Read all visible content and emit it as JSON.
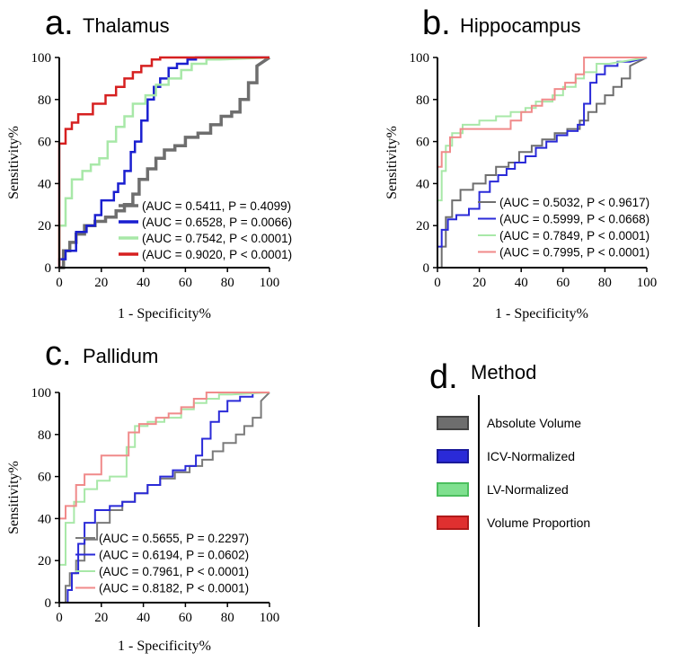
{
  "chart_data": [
    {
      "type": "line",
      "letter": "a.",
      "title": "Thalamus",
      "xlabel": "1 - Specificity%",
      "ylabel": "Sensitivity%",
      "xlim": [
        0,
        100
      ],
      "ylim": [
        0,
        100
      ],
      "xticks": [
        "0",
        "20",
        "40",
        "60",
        "80",
        "100"
      ],
      "yticks": [
        "0",
        "20",
        "40",
        "60",
        "80",
        "100"
      ],
      "series": [
        {
          "name": "Absolute Volume",
          "color": "#6e6e6e",
          "legend": "(AUC = 0.5411, P = 0.4099)",
          "x": [
            0,
            2,
            2,
            5,
            5,
            8,
            8,
            12,
            12,
            17,
            17,
            22,
            22,
            27,
            27,
            31,
            31,
            35,
            35,
            38,
            38,
            42,
            42,
            46,
            46,
            50,
            50,
            55,
            55,
            60,
            60,
            66,
            66,
            72,
            72,
            77,
            77,
            82,
            82,
            86,
            86,
            90,
            90,
            94,
            94,
            100
          ],
          "y": [
            0,
            0,
            8,
            8,
            12,
            12,
            16,
            16,
            20,
            20,
            22,
            22,
            24,
            24,
            27,
            27,
            30,
            30,
            35,
            35,
            42,
            42,
            47,
            47,
            52,
            52,
            56,
            56,
            58,
            58,
            62,
            62,
            64,
            64,
            68,
            68,
            72,
            72,
            74,
            74,
            80,
            80,
            88,
            88,
            96,
            100
          ]
        },
        {
          "name": "ICV-Normalized",
          "color": "#1a1fd0",
          "legend": "(AUC = 0.6528, P = 0.0066)",
          "x": [
            0,
            0,
            3,
            3,
            8,
            8,
            13,
            13,
            17,
            17,
            20,
            20,
            26,
            26,
            28,
            28,
            31,
            31,
            34,
            34,
            36,
            36,
            39,
            39,
            42,
            42,
            45,
            45,
            48,
            48,
            52,
            52,
            56,
            56,
            61,
            61,
            65,
            65,
            70,
            70,
            76,
            100
          ],
          "y": [
            0,
            4,
            4,
            8,
            8,
            17,
            17,
            20,
            20,
            25,
            25,
            32,
            32,
            36,
            36,
            40,
            40,
            46,
            46,
            55,
            55,
            60,
            60,
            70,
            70,
            80,
            80,
            86,
            86,
            90,
            90,
            95,
            95,
            97,
            97,
            99,
            99,
            100,
            100,
            100,
            100,
            100
          ]
        },
        {
          "name": "LV-Normalized",
          "color": "#a8e8a8",
          "legend": "(AUC = 0.7542, P < 0.0001)",
          "x": [
            0,
            0,
            3,
            3,
            6,
            6,
            11,
            11,
            15,
            15,
            19,
            19,
            23,
            23,
            27,
            27,
            31,
            31,
            35,
            35,
            41,
            41,
            46,
            46,
            52,
            52,
            58,
            58,
            63,
            63,
            70,
            70,
            76,
            100
          ],
          "y": [
            0,
            20,
            20,
            33,
            33,
            42,
            42,
            46,
            46,
            49,
            49,
            52,
            52,
            60,
            60,
            67,
            67,
            72,
            72,
            78,
            78,
            82,
            82,
            87,
            87,
            90,
            90,
            94,
            94,
            97,
            97,
            99,
            99,
            100
          ]
        },
        {
          "name": "Volume Proportion",
          "color": "#d62020",
          "lightcolor": "#f08a8a",
          "legend": "(AUC = 0.9020, P < 0.0001)",
          "x": [
            0,
            0,
            3,
            3,
            6,
            6,
            9,
            9,
            16,
            16,
            22,
            22,
            27,
            27,
            31,
            31,
            35,
            35,
            39,
            39,
            44,
            44,
            48,
            48,
            100
          ],
          "y": [
            0,
            59,
            59,
            66,
            66,
            69,
            69,
            73,
            73,
            78,
            78,
            82,
            82,
            86,
            86,
            90,
            90,
            93,
            93,
            96,
            96,
            99,
            99,
            100,
            100
          ]
        }
      ]
    },
    {
      "type": "line",
      "letter": "b.",
      "title": "Hippocampus",
      "xlabel": "1 - Specificity%",
      "ylabel": "Sensitivity%",
      "xlim": [
        0,
        100
      ],
      "ylim": [
        0,
        100
      ],
      "xticks": [
        "0",
        "20",
        "40",
        "60",
        "80",
        "100"
      ],
      "yticks": [
        "0",
        "20",
        "40",
        "60",
        "80",
        "100"
      ],
      "series": [
        {
          "name": "Absolute Volume",
          "color": "#6e6e6e",
          "legend": "(AUC = 0.5032, P < 0.9617)",
          "x": [
            0,
            2,
            2,
            4,
            4,
            7,
            7,
            11,
            11,
            17,
            17,
            23,
            23,
            28,
            28,
            34,
            34,
            39,
            39,
            45,
            45,
            50,
            50,
            56,
            56,
            62,
            62,
            68,
            68,
            72,
            72,
            76,
            76,
            80,
            80,
            84,
            84,
            88,
            88,
            92,
            92,
            100
          ],
          "y": [
            0,
            0,
            10,
            10,
            24,
            24,
            32,
            32,
            37,
            37,
            40,
            40,
            44,
            44,
            48,
            48,
            50,
            50,
            55,
            55,
            58,
            58,
            61,
            61,
            64,
            64,
            66,
            66,
            70,
            70,
            74,
            74,
            78,
            78,
            82,
            82,
            86,
            86,
            90,
            90,
            96,
            100
          ]
        },
        {
          "name": "ICV-Normalized",
          "color": "#2a2ad8",
          "legend": "(AUC = 0.5999, P < 0.0668)",
          "x": [
            0,
            0,
            2,
            2,
            5,
            5,
            9,
            9,
            15,
            15,
            20,
            20,
            25,
            25,
            29,
            29,
            33,
            33,
            37,
            37,
            42,
            42,
            47,
            47,
            52,
            52,
            57,
            57,
            62,
            62,
            67,
            67,
            70,
            70,
            73,
            73,
            76,
            76,
            80,
            80,
            86,
            86,
            92,
            100
          ],
          "y": [
            0,
            10,
            10,
            18,
            18,
            23,
            23,
            25,
            25,
            28,
            28,
            36,
            36,
            41,
            41,
            44,
            44,
            47,
            47,
            50,
            50,
            53,
            53,
            57,
            57,
            60,
            60,
            63,
            63,
            65,
            65,
            68,
            68,
            78,
            78,
            88,
            88,
            92,
            92,
            96,
            96,
            98,
            98,
            100
          ]
        },
        {
          "name": "LV-Normalized",
          "color": "#a8e8a8",
          "legend": "(AUC = 0.7849, P < 0.0001)",
          "x": [
            0,
            0,
            2,
            2,
            4,
            4,
            7,
            7,
            12,
            12,
            20,
            20,
            28,
            28,
            35,
            35,
            42,
            42,
            47,
            47,
            55,
            55,
            60,
            60,
            66,
            66,
            70,
            70,
            76,
            76,
            82,
            100
          ],
          "y": [
            0,
            32,
            32,
            46,
            46,
            58,
            58,
            64,
            64,
            68,
            68,
            70,
            70,
            72,
            72,
            74,
            74,
            76,
            76,
            79,
            79,
            82,
            82,
            86,
            86,
            90,
            90,
            93,
            93,
            97,
            97,
            100
          ]
        },
        {
          "name": "Volume Proportion",
          "color": "#e03030",
          "lightcolor": "#f08a8a",
          "legend": "(AUC = 0.7995, P < 0.0001)",
          "x": [
            0,
            0,
            2,
            2,
            6,
            6,
            11,
            11,
            20,
            20,
            35,
            35,
            40,
            40,
            45,
            45,
            50,
            50,
            56,
            56,
            61,
            61,
            66,
            66,
            70,
            70,
            100
          ],
          "y": [
            0,
            48,
            48,
            55,
            55,
            62,
            62,
            66,
            66,
            66,
            66,
            70,
            70,
            74,
            74,
            77,
            77,
            80,
            80,
            85,
            85,
            88,
            88,
            92,
            92,
            100,
            100
          ]
        }
      ]
    },
    {
      "type": "line",
      "letter": "c.",
      "title": "Pallidum",
      "xlabel": "1 - Specificity%",
      "ylabel": "Sensitivity%",
      "xlim": [
        0,
        100
      ],
      "ylim": [
        0,
        100
      ],
      "xticks": [
        "0",
        "20",
        "40",
        "60",
        "80",
        "100"
      ],
      "yticks": [
        "0",
        "20",
        "40",
        "60",
        "80",
        "100"
      ],
      "series": [
        {
          "name": "Absolute Volume",
          "color": "#7a7a7a",
          "legend": "(AUC = 0.5655, P = 0.2297)",
          "x": [
            0,
            3,
            3,
            5,
            5,
            8,
            8,
            12,
            12,
            18,
            18,
            24,
            24,
            30,
            30,
            36,
            36,
            42,
            42,
            48,
            48,
            55,
            55,
            62,
            62,
            68,
            68,
            73,
            73,
            78,
            78,
            84,
            84,
            88,
            88,
            92,
            92,
            96,
            96,
            100
          ],
          "y": [
            0,
            0,
            8,
            8,
            14,
            14,
            20,
            20,
            30,
            30,
            38,
            38,
            44,
            44,
            48,
            48,
            52,
            52,
            56,
            56,
            59,
            59,
            62,
            62,
            65,
            65,
            68,
            68,
            72,
            72,
            76,
            76,
            80,
            80,
            84,
            84,
            88,
            88,
            96,
            100
          ]
        },
        {
          "name": "ICV-Normalized",
          "color": "#2a2ad8",
          "legend": "(AUC = 0.6194, P = 0.0602)",
          "x": [
            0,
            4,
            4,
            6,
            6,
            9,
            9,
            12,
            12,
            17,
            17,
            24,
            24,
            30,
            30,
            36,
            36,
            42,
            42,
            48,
            48,
            54,
            54,
            60,
            60,
            65,
            65,
            68,
            68,
            72,
            72,
            76,
            76,
            80,
            80,
            86,
            86,
            92,
            92,
            100
          ],
          "y": [
            0,
            0,
            6,
            6,
            14,
            14,
            28,
            28,
            38,
            38,
            44,
            44,
            46,
            46,
            48,
            48,
            52,
            52,
            56,
            56,
            60,
            60,
            63,
            63,
            65,
            65,
            70,
            70,
            78,
            78,
            86,
            86,
            91,
            91,
            96,
            96,
            98,
            98,
            100,
            100
          ]
        },
        {
          "name": "LV-Normalized",
          "color": "#a8e8a8",
          "legend": "(AUC = 0.7961, P < 0.0001)",
          "x": [
            0,
            0,
            3,
            3,
            7,
            7,
            12,
            12,
            18,
            18,
            24,
            24,
            32,
            32,
            36,
            36,
            42,
            42,
            50,
            50,
            58,
            58,
            64,
            64,
            70,
            70,
            76,
            76,
            82,
            100
          ],
          "y": [
            0,
            18,
            18,
            38,
            38,
            48,
            48,
            54,
            54,
            58,
            58,
            60,
            60,
            74,
            74,
            84,
            84,
            86,
            86,
            88,
            88,
            92,
            92,
            95,
            95,
            97,
            97,
            99,
            99,
            100
          ]
        },
        {
          "name": "Volume Proportion",
          "color": "#e03030",
          "lightcolor": "#f08a8a",
          "legend": "(AUC = 0.8182, P < 0.0001)",
          "x": [
            0,
            0,
            3,
            3,
            8,
            8,
            12,
            12,
            20,
            20,
            33,
            33,
            38,
            38,
            46,
            46,
            52,
            52,
            58,
            58,
            64,
            64,
            70,
            70,
            100
          ],
          "y": [
            0,
            40,
            40,
            46,
            46,
            56,
            56,
            61,
            61,
            70,
            70,
            81,
            81,
            85,
            85,
            88,
            88,
            90,
            90,
            93,
            93,
            97,
            97,
            100,
            100
          ]
        }
      ]
    }
  ],
  "method_legend": {
    "letter": "d.",
    "title": "Method",
    "items": [
      {
        "label": "Absolute Volume",
        "fill": "#6e6e6e",
        "border": "#444444"
      },
      {
        "label": "ICV-Normalized",
        "fill": "#2a2ad8",
        "border": "#1a1a9a"
      },
      {
        "label": "LV-Normalized",
        "fill": "#7fe08f",
        "border": "#4cbf5e"
      },
      {
        "label": "Volume Proportion",
        "fill": "#e03030",
        "border": "#b01a1a"
      }
    ]
  }
}
